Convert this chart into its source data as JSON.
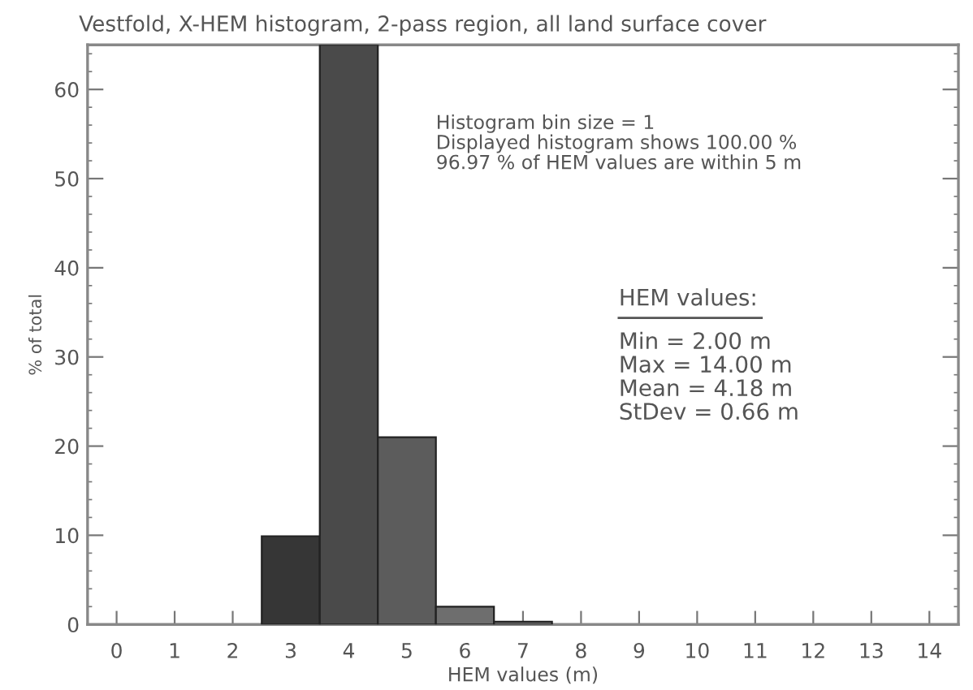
{
  "chart_data": {
    "type": "histogram",
    "title": "Vestfold, X-HEM histogram, 2-pass region, all land surface cover",
    "xlabel": "HEM values (m)",
    "ylabel": "% of total",
    "bins": [
      2.5,
      3.5,
      4.5,
      5.5,
      6.5,
      7.5
    ],
    "values": [
      9.9,
      65,
      21.0,
      2.0,
      0.3
    ],
    "colors": [
      "#363636",
      "#4a4a4a",
      "#5c5c5c",
      "#6e6e6e",
      "#7a7a7a"
    ],
    "xlim": [
      -0.5,
      14.5
    ],
    "xticks": [
      0,
      1,
      2,
      3,
      4,
      5,
      6,
      7,
      8,
      9,
      10,
      11,
      12,
      13,
      14
    ],
    "ylim": [
      0,
      65
    ],
    "yticks": [
      0,
      10,
      20,
      30,
      40,
      50,
      60
    ],
    "grid": false,
    "legend": false,
    "annotations": [
      "Histogram bin size = 1\nDisplayed histogram shows 100.00 %\n96.97 % of HEM values are within 5 m",
      "HEM values:",
      "Min = 2.00 m\nMax = 14.00 m\nMean = 4.18 m\nStDev = 0.66 m"
    ]
  }
}
